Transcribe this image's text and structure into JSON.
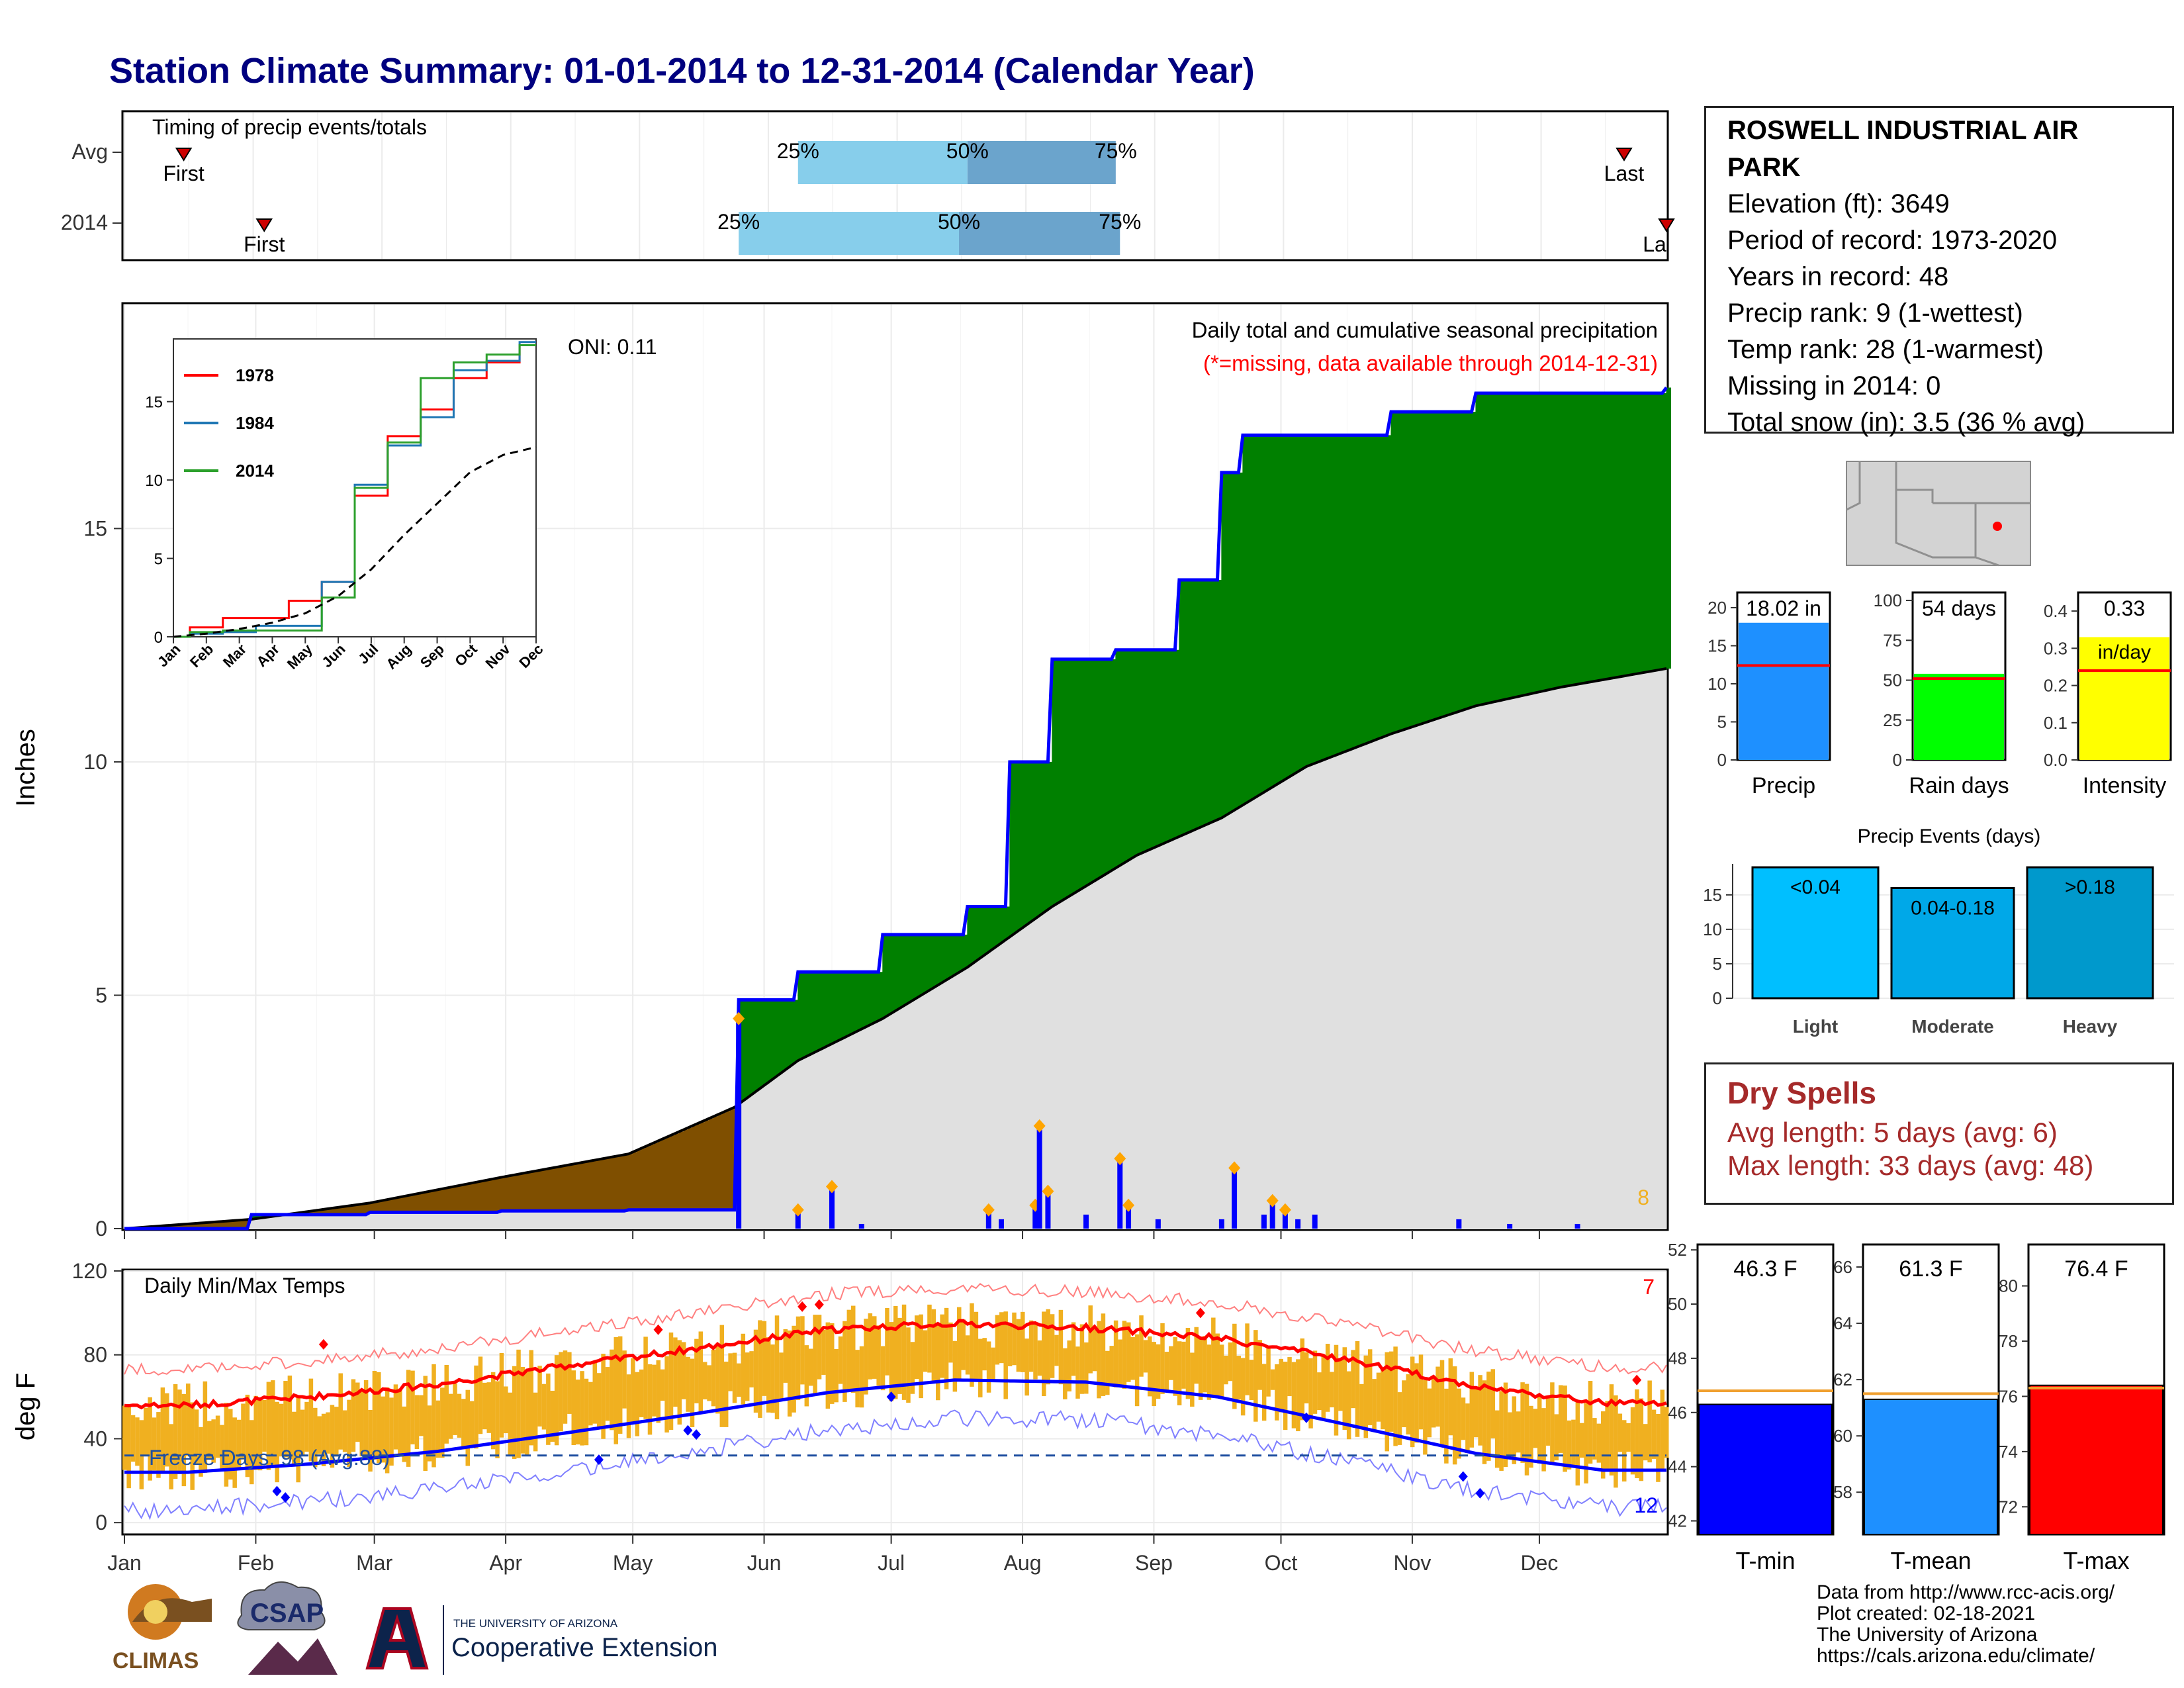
{
  "title": "Station Climate Summary: 01-01-2014 to 12-31-2014 (Calendar Year)",
  "colors": {
    "title": "#00007f",
    "blue_line": "#0000ff",
    "green_fill": "#008000",
    "brown_fill": "#7f4f00",
    "gray_fill": "#e0e0e0",
    "orange": "#f0b020",
    "light_blue": "#87ceeb",
    "mid_blue": "#6ba4cc"
  },
  "timing": {
    "title": "Timing of precip events/totals",
    "rows": [
      {
        "label": "Avg",
        "first": "First",
        "last": "Last",
        "p25": "25%",
        "p50": "50%",
        "p75": "75%",
        "first_doy": 15,
        "last_doy": 355,
        "p25_doy": 160,
        "p50_doy": 200,
        "p75_doy": 235
      },
      {
        "label": "2014",
        "first": "First",
        "last": "La",
        "p25": "25%",
        "p50": "50%",
        "p75": "75%",
        "first_doy": 34,
        "last_doy": 365,
        "p25_doy": 146,
        "p50_doy": 198,
        "p75_doy": 236
      }
    ]
  },
  "precip_panel": {
    "ylabel": "Inches",
    "title": "Daily total and cumulative seasonal precipitation",
    "subtitle": "(*=missing, data available through 2014-12-31)",
    "oni": "ONI: 0.11",
    "count_label": "8",
    "yticks": [
      "0",
      "5",
      "10",
      "15"
    ]
  },
  "inset": {
    "years": [
      "1978",
      "1984",
      "2014"
    ],
    "yticks": [
      "0",
      "5",
      "10",
      "15"
    ],
    "months": [
      "Jan",
      "Feb",
      "Mar",
      "Apr",
      "May",
      "Jun",
      "Jul",
      "Aug",
      "Sep",
      "Oct",
      "Nov",
      "Dec"
    ]
  },
  "temp_panel": {
    "ylabel": "deg F",
    "title": "Daily Min/Max Temps",
    "freeze": "Freeze Days: 98 (Avg:88)",
    "hot_count": "7",
    "cold_count": "12",
    "yticks": [
      "0",
      "40",
      "80",
      "120"
    ],
    "months": [
      "Jan",
      "Feb",
      "Mar",
      "Apr",
      "May",
      "Jun",
      "Jul",
      "Aug",
      "Sep",
      "Oct",
      "Nov",
      "Dec"
    ]
  },
  "station": {
    "name": "ROSWELL INDUSTRIAL AIR PARK",
    "lines": [
      "Elevation (ft): 3649",
      "Period of record: 1973-2020",
      "Years in record: 48",
      "Precip rank: 9 (1-wettest)",
      "Temp rank: 28 (1-warmest)",
      "Missing in 2014: 0",
      "Total snow (in): 3.5 (36 % avg)"
    ]
  },
  "summary_bars": [
    {
      "label": "Precip",
      "value_label": "18.02 in",
      "value": 18.02,
      "avg": 12.4,
      "max": 22,
      "yticks": [
        "0",
        "5",
        "10",
        "15",
        "20"
      ],
      "color": "#1e90ff"
    },
    {
      "label": "Rain days",
      "value_label": "54 days",
      "value": 54,
      "avg": 51,
      "max": 105,
      "yticks": [
        "0",
        "25",
        "50",
        "75",
        "100"
      ],
      "color": "#00ff00"
    },
    {
      "label": "Intensity",
      "value_label": "0.33",
      "unit": "in/day",
      "value": 0.33,
      "avg": 0.24,
      "max": 0.45,
      "yticks": [
        "0.0",
        "0.1",
        "0.2",
        "0.3",
        "0.4"
      ],
      "color": "#ffff00"
    }
  ],
  "precip_events": {
    "title": "Precip Events (days)",
    "yticks": [
      "0",
      "5",
      "10",
      "15"
    ],
    "bars": [
      {
        "label": "Light",
        "value_label": "<0.04",
        "value": 19,
        "color": "#00bfff"
      },
      {
        "label": "Moderate",
        "value_label": "0.04-0.18",
        "value": 16,
        "color": "#00a8e8"
      },
      {
        "label": "Heavy",
        "value_label": ">0.18",
        "value": 19,
        "color": "#0099cc"
      }
    ]
  },
  "dry_spells": {
    "title": "Dry Spells",
    "avg_length": "Avg length: 5 days (avg: 6)",
    "max_length": "Max length: 33 days (avg: 48)"
  },
  "temp_bars": [
    {
      "label": "T-min",
      "value_label": "46.3 F",
      "value": 46.3,
      "avg": 46.8,
      "min": 41.5,
      "max": 52.2,
      "yticks": [
        "42",
        "44",
        "46",
        "48",
        "50",
        "52"
      ],
      "color": "#0000ff"
    },
    {
      "label": "T-mean",
      "value_label": "61.3 F",
      "value": 61.3,
      "avg": 61.5,
      "min": 56.5,
      "max": 66.8,
      "yticks": [
        "58",
        "60",
        "62",
        "64",
        "66"
      ],
      "color": "#1e90ff"
    },
    {
      "label": "T-max",
      "value_label": "76.4 F",
      "value": 76.4,
      "avg": 76.3,
      "min": 71,
      "max": 81.5,
      "yticks": [
        "72",
        "74",
        "76",
        "78",
        "80"
      ],
      "color": "#ff0000"
    }
  ],
  "footer": [
    "Data from http://www.rcc-acis.org/",
    "Plot created: 02-18-2021",
    "The University of Arizona",
    "https://cals.arizona.edu/climate/"
  ],
  "logos": {
    "climas": "CLIMAS",
    "csap": "CSAP",
    "ua_small": "THE UNIVERSITY OF ARIZONA",
    "ua_big": "Cooperative Extension"
  },
  "chart_data": [
    {
      "type": "area",
      "title": "Daily total and cumulative seasonal precipitation",
      "ylabel": "Inches",
      "ylim": [
        0,
        19.8
      ],
      "x": [
        "Jan",
        "Feb",
        "Mar",
        "Apr",
        "May",
        "Jun",
        "Jul",
        "Aug",
        "Sep",
        "Oct",
        "Nov",
        "Dec"
      ],
      "series": [
        {
          "values_doy": [
            [
              1,
              0.0
            ],
            [
              31,
              0.3
            ],
            [
              59,
              0.35
            ],
            [
              90,
              0.38
            ],
            [
              120,
              0.4
            ],
            [
              145,
              0.4
            ],
            [
              146,
              4.9
            ],
            [
              160,
              5.5
            ],
            [
              180,
              6.3
            ],
            [
              200,
              6.9
            ],
            [
              210,
              10.0
            ],
            [
              220,
              12.2
            ],
            [
              235,
              12.4
            ],
            [
              250,
              13.9
            ],
            [
              260,
              16.2
            ],
            [
              265,
              17.0
            ],
            [
              280,
              17.0
            ],
            [
              300,
              17.5
            ],
            [
              320,
              17.9
            ],
            [
              365,
              18.02
            ]
          ]
        },
        {
          "values_doy": [
            [
              1,
              0.0
            ],
            [
              31,
              0.2
            ],
            [
              59,
              0.55
            ],
            [
              90,
              1.1
            ],
            [
              120,
              1.6
            ],
            [
              145,
              2.6
            ],
            [
              160,
              3.6
            ],
            [
              180,
              4.5
            ],
            [
              200,
              5.6
            ],
            [
              220,
              6.9
            ],
            [
              240,
              8.0
            ],
            [
              260,
              8.8
            ],
            [
              280,
              9.9
            ],
            [
              300,
              10.6
            ],
            [
              320,
              11.2
            ],
            [
              340,
              11.6
            ],
            [
              365,
              12.0
            ]
          ]
        }
      ],
      "daily_precip_doy": [
        [
          146,
          4.5
        ],
        [
          160,
          0.4
        ],
        [
          168,
          0.9
        ],
        [
          175,
          0.1
        ],
        [
          205,
          0.4
        ],
        [
          208,
          0.2
        ],
        [
          216,
          0.5
        ],
        [
          217,
          2.2
        ],
        [
          219,
          0.8
        ],
        [
          228,
          0.3
        ],
        [
          236,
          1.5
        ],
        [
          238,
          0.5
        ],
        [
          245,
          0.2
        ],
        [
          260,
          0.2
        ],
        [
          263,
          1.3
        ],
        [
          270,
          0.3
        ],
        [
          272,
          0.6
        ],
        [
          275,
          0.4
        ],
        [
          278,
          0.2
        ],
        [
          282,
          0.3
        ],
        [
          316,
          0.2
        ],
        [
          328,
          0.1
        ],
        [
          344,
          0.1
        ]
      ]
    },
    {
      "type": "line",
      "title": "",
      "ylim": [
        0,
        19
      ],
      "x": [
        "Jan",
        "Feb",
        "Mar",
        "Apr",
        "May",
        "Jun",
        "Jul",
        "Aug",
        "Sep",
        "Oct",
        "Nov",
        "Dec"
      ],
      "series": [
        {
          "name": "1978",
          "values": [
            0,
            0.6,
            1.2,
            1.2,
            2.3,
            3.5,
            9.0,
            12.8,
            14.5,
            16.5,
            17.5,
            18.6
          ]
        },
        {
          "name": "1984",
          "values": [
            0,
            0.2,
            0.3,
            0.7,
            0.7,
            3.5,
            9.7,
            12.2,
            14.0,
            17.0,
            17.6,
            18.8
          ]
        },
        {
          "name": "2014",
          "values": [
            0,
            0.3,
            0.4,
            0.4,
            0.4,
            2.5,
            9.5,
            12.4,
            16.5,
            17.5,
            18.0,
            18.6
          ]
        },
        {
          "name": "",
          "values": [
            0,
            0.2,
            0.5,
            0.9,
            1.5,
            2.6,
            4.3,
            6.5,
            8.5,
            10.5,
            11.6,
            12.1
          ]
        }
      ]
    },
    {
      "type": "line",
      "title": "Daily Min/Max Temps",
      "ylabel": "deg F",
      "ylim": [
        -5,
        120
      ],
      "x": [
        "Jan",
        "Feb",
        "Mar",
        "Apr",
        "May",
        "Jun",
        "Jul",
        "Aug",
        "Sep",
        "Oct",
        "Nov",
        "Dec"
      ],
      "series": [
        {
          "name": "",
          "values": [
            56,
            60,
            66,
            75,
            83,
            92,
            95,
            93,
            88,
            78,
            65,
            57
          ]
        },
        {
          "name": "",
          "values": [
            24,
            28,
            34,
            43,
            52,
            62,
            68,
            67,
            60,
            47,
            33,
            25
          ]
        }
      ],
      "freeze_line": 32
    }
  ]
}
